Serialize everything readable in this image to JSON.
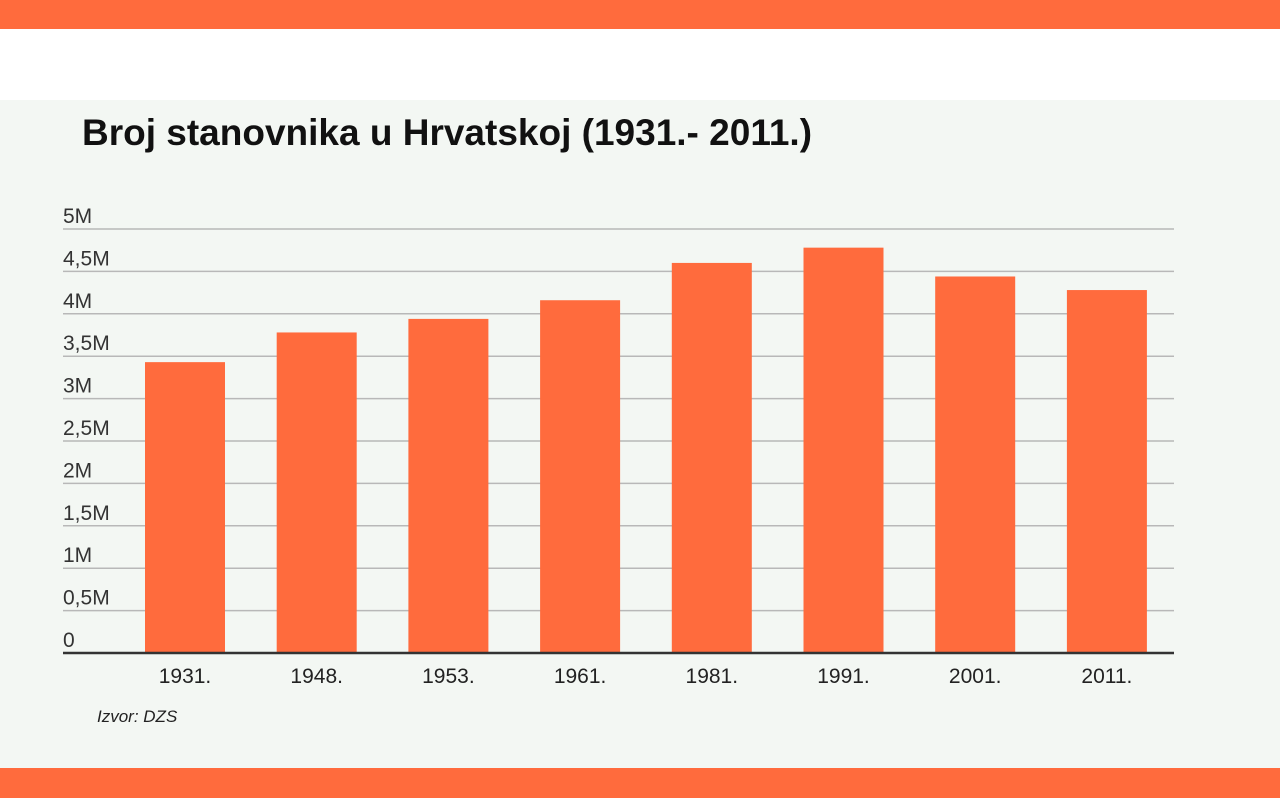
{
  "colors": {
    "accent": "#ff6b3d",
    "panel_bg": "#f3f7f3",
    "grid": "#b8b8b8",
    "axis": "#333333"
  },
  "chart_data": {
    "type": "bar",
    "title": "Broj stanovnika u Hrvatskoj (1931.- 2011.)",
    "xlabel": "",
    "ylabel": "",
    "categories": [
      "1931.",
      "1948.",
      "1953.",
      "1961.",
      "1981.",
      "1991.",
      "2001.",
      "2011."
    ],
    "values": [
      3430000,
      3780000,
      3940000,
      4160000,
      4600000,
      4780000,
      4440000,
      4280000
    ],
    "ylim": [
      0,
      5000000
    ],
    "yticks": [
      0,
      500000,
      1000000,
      1500000,
      2000000,
      2500000,
      3000000,
      3500000,
      4000000,
      4500000,
      5000000
    ],
    "ytick_labels": [
      "0",
      "0,5M",
      "1M",
      "1,5M",
      "2M",
      "2,5M",
      "3M",
      "3,5M",
      "4M",
      "4,5M",
      "5M"
    ],
    "grid": true,
    "legend": "none",
    "source": "Izvor: DZS"
  }
}
